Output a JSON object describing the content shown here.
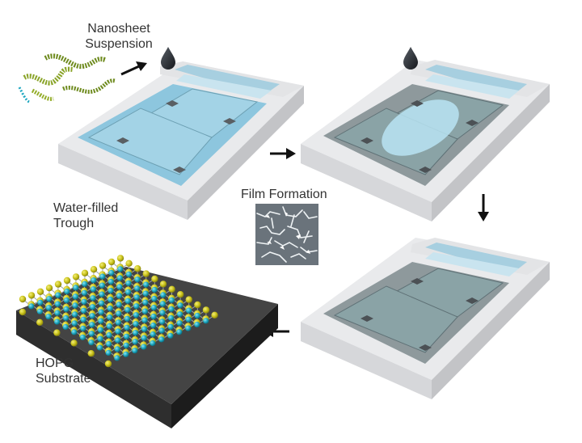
{
  "labels": {
    "suspension_line1": "Nanosheet",
    "suspension_line2": "Suspension",
    "trough_line1": "Water-filled",
    "trough_line2": "Trough",
    "film_formation": "Film Formation",
    "substrate_line1": "HOPG",
    "substrate_line2": "Substrate"
  },
  "colors": {
    "trough_frame": "#e9eaec",
    "trough_side": "#c9cacd",
    "water": "#9fd3ea",
    "water_dark": "#6f8e98",
    "barrier": "#b2dce9",
    "film_spot": "#b5e3f3",
    "substrate": "#3a3a3a",
    "sulfur": "#c9c21a",
    "metal": "#1ea7c0",
    "droplet": "#1f2329",
    "film_image": "#6a737b"
  },
  "icons": [
    "droplet-icon",
    "arrow-right-icon",
    "arrow-down-icon",
    "arrow-left-icon"
  ]
}
